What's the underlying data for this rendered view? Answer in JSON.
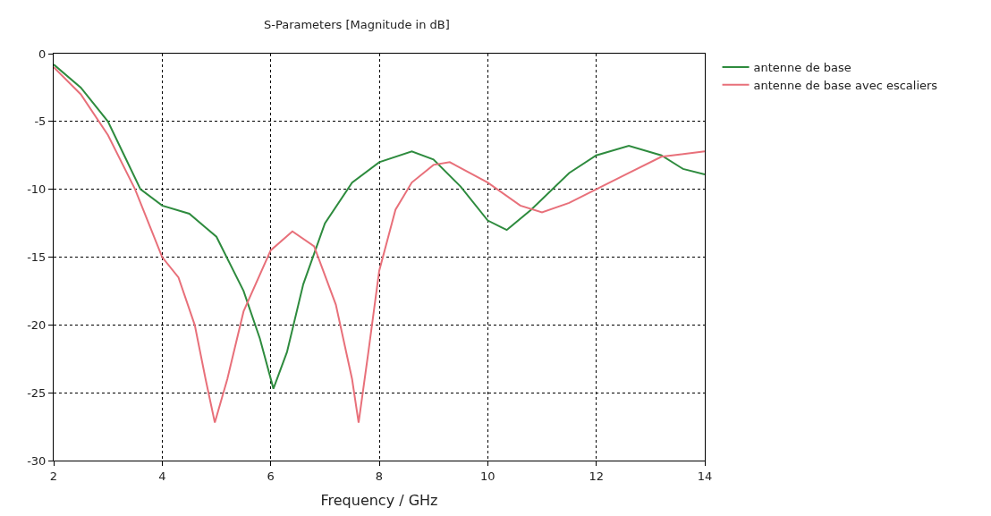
{
  "chart_data": {
    "type": "line",
    "title": "S-Parameters [Magnitude in dB]",
    "xlabel": "Frequency / GHz",
    "xlim": [
      2,
      14
    ],
    "xticks": [
      2,
      4,
      6,
      8,
      10,
      12,
      14
    ],
    "ylim": [
      -30,
      0
    ],
    "yticks": [
      -30,
      -25,
      -20,
      -15,
      -10,
      -5,
      0
    ],
    "grid": true,
    "legend": "top right",
    "marker": "none",
    "line_style": "solid",
    "series": [
      {
        "name": "antenne de base",
        "color": "#2e8b3e",
        "x": [
          2,
          2.5,
          3,
          3.3,
          3.6,
          4,
          4.5,
          5,
          5.5,
          5.8,
          6.05,
          6.3,
          6.6,
          7,
          7.5,
          8,
          8.6,
          9,
          9.5,
          10,
          10.35,
          10.8,
          11.5,
          12,
          12.6,
          13.2,
          13.6,
          14
        ],
        "values": [
          -0.8,
          -2.5,
          -5,
          -7.5,
          -10,
          -11.2,
          -11.8,
          -13.5,
          -17.5,
          -21,
          -24.7,
          -22,
          -17,
          -12.5,
          -9.5,
          -8,
          -7.2,
          -7.8,
          -9.8,
          -12.3,
          -13,
          -11.5,
          -8.8,
          -7.5,
          -6.8,
          -7.5,
          -8.5,
          -8.9
        ]
      },
      {
        "name": "antenne de base avec escaliers",
        "color": "#e8707a",
        "x": [
          2,
          2.5,
          3,
          3.5,
          4,
          4.3,
          4.6,
          4.8,
          4.97,
          5.2,
          5.5,
          6,
          6.4,
          6.8,
          7.2,
          7.5,
          7.62,
          7.8,
          8,
          8.3,
          8.6,
          9,
          9.3,
          10,
          10.6,
          11,
          11.5,
          12,
          12.6,
          13.2,
          14
        ],
        "values": [
          -1,
          -3,
          -6,
          -10,
          -15,
          -16.5,
          -20,
          -24,
          -27.2,
          -24,
          -19,
          -14.5,
          -13.1,
          -14.2,
          -18.5,
          -24,
          -27.2,
          -22,
          -16,
          -11.5,
          -9.5,
          -8.2,
          -8,
          -9.5,
          -11.2,
          -11.7,
          -11,
          -10,
          -8.8,
          -7.6,
          -7.2
        ]
      }
    ]
  }
}
